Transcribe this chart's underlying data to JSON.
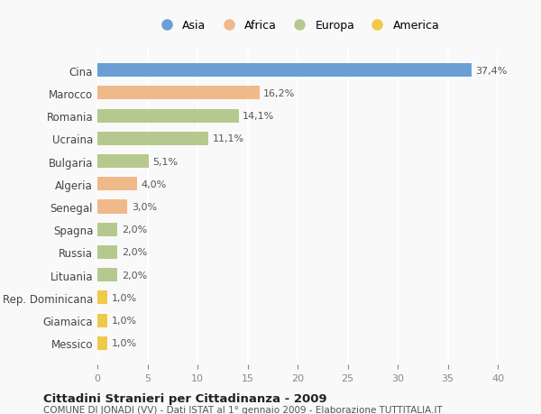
{
  "categories": [
    "Cina",
    "Marocco",
    "Romania",
    "Ucraina",
    "Bulgaria",
    "Algeria",
    "Senegal",
    "Spagna",
    "Russia",
    "Lituania",
    "Rep. Dominicana",
    "Giamaica",
    "Messico"
  ],
  "values": [
    37.4,
    16.2,
    14.1,
    11.1,
    5.1,
    4.0,
    3.0,
    2.0,
    2.0,
    2.0,
    1.0,
    1.0,
    1.0
  ],
  "labels": [
    "37,4%",
    "16,2%",
    "14,1%",
    "11,1%",
    "5,1%",
    "4,0%",
    "3,0%",
    "2,0%",
    "2,0%",
    "2,0%",
    "1,0%",
    "1,0%",
    "1,0%"
  ],
  "colors": [
    "#6b9fd4",
    "#f0b989",
    "#b5c98e",
    "#b5c98e",
    "#b5c98e",
    "#f0b989",
    "#f0b989",
    "#b5c98e",
    "#b5c98e",
    "#b5c98e",
    "#f0c84a",
    "#f0c84a",
    "#f0c84a"
  ],
  "legend_labels": [
    "Asia",
    "Africa",
    "Europa",
    "America"
  ],
  "legend_colors": [
    "#6b9fd4",
    "#f0b989",
    "#b5c98e",
    "#f0c84a"
  ],
  "title": "Cittadini Stranieri per Cittadinanza - 2009",
  "subtitle": "COMUNE DI JONADI (VV) - Dati ISTAT al 1° gennaio 2009 - Elaborazione TUTTITALIA.IT",
  "xlim": [
    0,
    40
  ],
  "xticks": [
    0,
    5,
    10,
    15,
    20,
    25,
    30,
    35,
    40
  ],
  "background_color": "#f9f9f9",
  "grid_color": "#ffffff",
  "bar_height": 0.6
}
